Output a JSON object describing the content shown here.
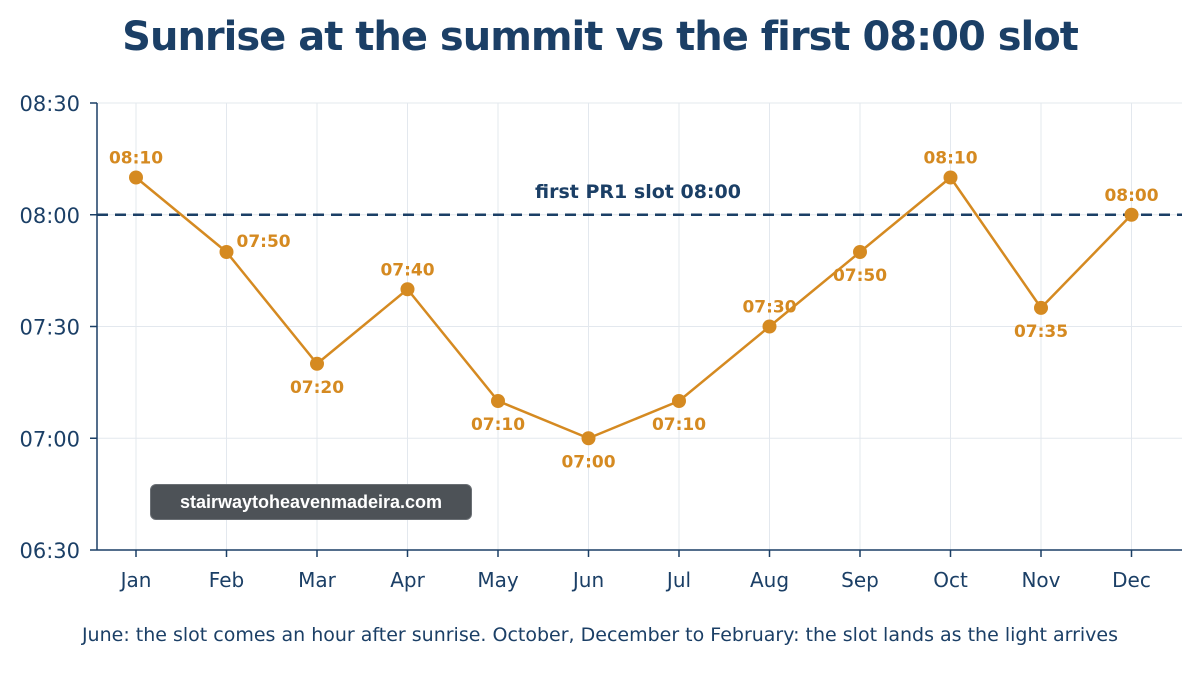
{
  "chart_data": {
    "type": "line",
    "title": "Sunrise at the summit vs the first 08:00 slot",
    "categories": [
      "Jan",
      "Feb",
      "Mar",
      "Apr",
      "May",
      "Jun",
      "Jul",
      "Aug",
      "Sep",
      "Oct",
      "Nov",
      "Dec"
    ],
    "values": [
      490,
      470,
      440,
      460,
      430,
      420,
      430,
      450,
      470,
      490,
      455,
      480
    ],
    "value_labels": [
      "08:10",
      "07:50",
      "07:20",
      "07:40",
      "07:10",
      "07:00",
      "07:10",
      "07:30",
      "07:50",
      "08:10",
      "07:35",
      "08:00"
    ],
    "label_positions": [
      "above",
      "right",
      "below",
      "above",
      "below",
      "below",
      "below",
      "above",
      "below",
      "above",
      "below",
      "above"
    ],
    "y_unit": "minutes after midnight",
    "ylim": [
      390,
      510
    ],
    "yticks": [
      390,
      420,
      450,
      480,
      510
    ],
    "ytick_labels": [
      "06:30",
      "07:00",
      "07:30",
      "08:00",
      "08:30"
    ],
    "grid": true,
    "reference_line": {
      "value": 480,
      "label": "first PR1 slot 08:00",
      "color": "#1b3f66"
    },
    "series_color": "#d58a21",
    "caption": "June: the slot comes an hour after sunrise. October, December to February: the slot lands as the light arrives"
  },
  "watermark": "stairwaytoheavenmadeira.com"
}
